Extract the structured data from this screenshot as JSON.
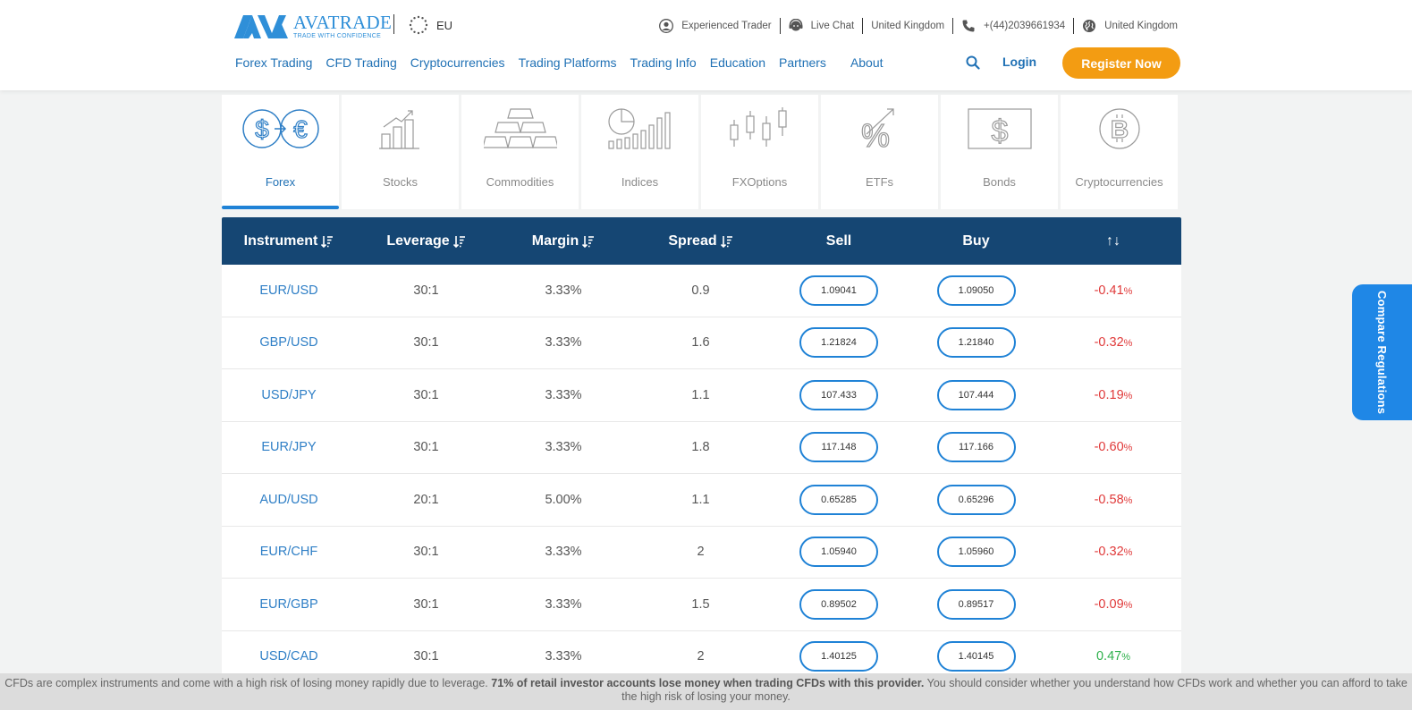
{
  "brand": {
    "name": "AVATRADE",
    "tagline": "TRADE WITH CONFIDENCE",
    "color": "#2f8fd8"
  },
  "region": {
    "label": "EU"
  },
  "top_links": [
    {
      "label": "Experienced Trader",
      "icon": "user-circle-icon"
    },
    {
      "label": "Live Chat",
      "icon": "headset-icon"
    },
    {
      "label": "United Kingdom",
      "icon": ""
    },
    {
      "label": "+(44)2039661934",
      "icon": "phone-icon"
    },
    {
      "label": "United Kingdom",
      "icon": "globe-icon"
    }
  ],
  "nav": {
    "items": [
      "Forex Trading",
      "CFD Trading",
      "Cryptocurrencies",
      "Trading Platforms",
      "Trading Info",
      "Education",
      "Partners",
      "About"
    ],
    "login": "Login",
    "register": "Register Now",
    "register_color": "#f39c12"
  },
  "categories": [
    {
      "label": "Forex",
      "icon": "forex-dollar-euro-icon",
      "active": true
    },
    {
      "label": "Stocks",
      "icon": "stocks-bar-chart-icon",
      "active": false
    },
    {
      "label": "Commodities",
      "icon": "gold-bars-icon",
      "active": false
    },
    {
      "label": "Indices",
      "icon": "indices-pie-bar-icon",
      "active": false
    },
    {
      "label": "FXOptions",
      "icon": "candlestick-icon",
      "active": false
    },
    {
      "label": "ETFs",
      "icon": "percent-arrow-icon",
      "active": false
    },
    {
      "label": "Bonds",
      "icon": "bond-certificate-icon",
      "active": false
    },
    {
      "label": "Cryptocurrencies",
      "icon": "bitcoin-icon",
      "active": false
    }
  ],
  "table": {
    "headers": {
      "instrument": "Instrument",
      "leverage": "Leverage",
      "margin": "Margin",
      "spread": "Spread",
      "sell": "Sell",
      "buy": "Buy",
      "change": "↑↓"
    },
    "header_color": "#154673",
    "rows": [
      {
        "instrument": "EUR/USD",
        "leverage": "30:1",
        "margin": "3.33%",
        "spread": "0.9",
        "sell": "1.09041",
        "buy": "1.09050",
        "change": "-0.41",
        "direction": "neg"
      },
      {
        "instrument": "GBP/USD",
        "leverage": "30:1",
        "margin": "3.33%",
        "spread": "1.6",
        "sell": "1.21824",
        "buy": "1.21840",
        "change": "-0.32",
        "direction": "neg"
      },
      {
        "instrument": "USD/JPY",
        "leverage": "30:1",
        "margin": "3.33%",
        "spread": "1.1",
        "sell": "107.433",
        "buy": "107.444",
        "change": "-0.19",
        "direction": "neg"
      },
      {
        "instrument": "EUR/JPY",
        "leverage": "30:1",
        "margin": "3.33%",
        "spread": "1.8",
        "sell": "117.148",
        "buy": "117.166",
        "change": "-0.60",
        "direction": "neg"
      },
      {
        "instrument": "AUD/USD",
        "leverage": "20:1",
        "margin": "5.00%",
        "spread": "1.1",
        "sell": "0.65285",
        "buy": "0.65296",
        "change": "-0.58",
        "direction": "neg"
      },
      {
        "instrument": "EUR/CHF",
        "leverage": "30:1",
        "margin": "3.33%",
        "spread": "2",
        "sell": "1.05940",
        "buy": "1.05960",
        "change": "-0.32",
        "direction": "neg"
      },
      {
        "instrument": "EUR/GBP",
        "leverage": "30:1",
        "margin": "3.33%",
        "spread": "1.5",
        "sell": "0.89502",
        "buy": "0.89517",
        "change": "-0.09",
        "direction": "neg"
      },
      {
        "instrument": "USD/CAD",
        "leverage": "30:1",
        "margin": "3.33%",
        "spread": "2",
        "sell": "1.40125",
        "buy": "1.40145",
        "change": "0.47",
        "direction": "pos"
      }
    ],
    "pct_sign": "%"
  },
  "side_tab": {
    "label": "Compare Regulations",
    "color": "#1f87e6"
  },
  "risk": {
    "part1": "CFDs are complex instruments and come with a high risk of losing money rapidly due to leverage. ",
    "bold": "71% of retail investor accounts lose money when trading CFDs with this provider.",
    "part2": " You should consider whether you understand how CFDs work and whether you can afford to take the high risk of losing your money."
  }
}
